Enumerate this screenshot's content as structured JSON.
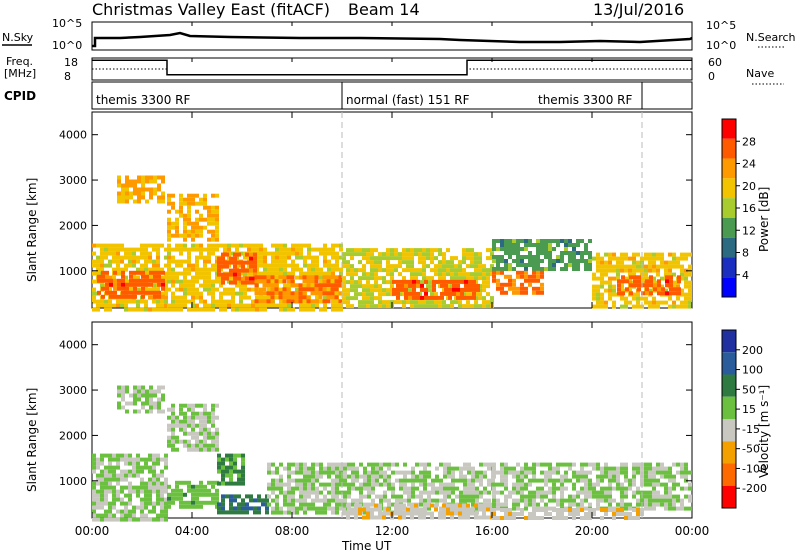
{
  "header": {
    "station": "Christmas Valley East (fitACF)",
    "beam": "Beam 14",
    "date": "13/Jul/2016"
  },
  "top_panels": {
    "nsky_label": "N.Sky",
    "nsky_ticks": [
      "10^5",
      "10^0"
    ],
    "nsearch_label": "N.Search",
    "nsearch_ticks": [
      "10^5",
      "10^0"
    ],
    "freq_label_1": "Freq.",
    "freq_label_2": "[MHz]",
    "freq_ticks": [
      "18",
      "8"
    ],
    "nave_label": "Nave",
    "nave_ticks": [
      "60",
      "0"
    ],
    "cpid_label": "CPID",
    "cpid_segments": [
      {
        "label": "themis 3300 RF",
        "start_hour": 0,
        "end_hour": 10
      },
      {
        "label": "normal (fast) 151 RF",
        "start_hour": 10,
        "end_hour": 22
      },
      {
        "label": "themis 3300 RF",
        "start_hour": 22,
        "end_hour": 24
      }
    ],
    "freq_series_mhz": [
      [
        0,
        17
      ],
      [
        3,
        17
      ],
      [
        3,
        10.4
      ],
      [
        15,
        10.4
      ],
      [
        15,
        17
      ],
      [
        24,
        17
      ]
    ],
    "nave_series": [
      [
        0,
        30
      ],
      [
        3,
        30
      ],
      [
        3,
        15
      ],
      [
        15,
        15
      ],
      [
        15,
        30
      ],
      [
        24,
        30
      ]
    ]
  },
  "x_axis": {
    "label": "Time UT",
    "ticks": [
      "00:00",
      "04:00",
      "08:00",
      "12:00",
      "16:00",
      "20:00",
      "00:00"
    ]
  },
  "power_panel": {
    "ylabel": "Slant Range [km]",
    "colorbar_label": "Power [dB]",
    "colorbar_ticks": [
      "28",
      "24",
      "20",
      "16",
      "12",
      "8",
      "4"
    ]
  },
  "velocity_panel": {
    "ylabel": "Slant Range [km]",
    "colorbar_label": "Velocity [m s⁻¹]",
    "colorbar_ticks": [
      "200",
      "100",
      "50",
      "15",
      "-15",
      "-50",
      "-100",
      "-200"
    ]
  },
  "colors": {
    "power_scale": [
      "#ff0000",
      "#ff5a00",
      "#ff9900",
      "#f2c400",
      "#a8cc2e",
      "#4a9a52",
      "#2b6a80",
      "#1a2ec0",
      "#0000ff"
    ],
    "velocity_scale": [
      "#2030a0",
      "#2a5c9c",
      "#2e7a40",
      "#6cc040",
      "#c8c8c0",
      "#f4a000",
      "#ff6a00",
      "#ff0000"
    ]
  },
  "chart_data": {
    "type": "heatmap",
    "x_range_hours": [
      0,
      24
    ],
    "y_range_km": [
      180,
      4500
    ],
    "y_ticks_km": [
      1000,
      2000,
      3000,
      4000
    ],
    "panels": [
      {
        "name": "Power [dB]",
        "scale": [
          0,
          32
        ],
        "regions": [
          {
            "t0": 0,
            "t1": 3,
            "r0": 180,
            "r1": 1600,
            "value": 20
          },
          {
            "t0": 0.2,
            "t1": 2.8,
            "r0": 400,
            "r1": 1000,
            "value": 28
          },
          {
            "t0": 1,
            "t1": 2.8,
            "r0": 2500,
            "r1": 3100,
            "value": 22
          },
          {
            "t0": 3,
            "t1": 5,
            "r0": 1700,
            "r1": 2700,
            "value": 22
          },
          {
            "t0": 3,
            "t1": 10,
            "r0": 180,
            "r1": 1600,
            "value": 20
          },
          {
            "t0": 5,
            "t1": 6.5,
            "r0": 700,
            "r1": 1400,
            "value": 28
          },
          {
            "t0": 6.5,
            "t1": 10,
            "r0": 300,
            "r1": 900,
            "value": 26
          },
          {
            "t0": 10,
            "t1": 16,
            "r0": 180,
            "r1": 1500,
            "value": 18
          },
          {
            "t0": 12,
            "t1": 15.5,
            "r0": 400,
            "r1": 800,
            "value": 28
          },
          {
            "t0": 16,
            "t1": 20,
            "r0": 1000,
            "r1": 1700,
            "value": 12
          },
          {
            "t0": 16,
            "t1": 18,
            "r0": 500,
            "r1": 1000,
            "value": 26
          },
          {
            "t0": 20,
            "t1": 24,
            "r0": 180,
            "r1": 1400,
            "value": 20
          },
          {
            "t0": 21,
            "t1": 23.5,
            "r0": 500,
            "r1": 900,
            "value": 28
          }
        ]
      },
      {
        "name": "Velocity [m s⁻¹]",
        "scale": [
          -200,
          200
        ],
        "regions": [
          {
            "t0": 0,
            "t1": 3,
            "r0": 180,
            "r1": 1600,
            "value": 0
          },
          {
            "t0": 1,
            "t1": 2.8,
            "r0": 2500,
            "r1": 3100,
            "value": 0
          },
          {
            "t0": 3,
            "t1": 5,
            "r0": 1700,
            "r1": 2700,
            "value": 0
          },
          {
            "t0": 3,
            "t1": 5,
            "r0": 400,
            "r1": 1000,
            "value": 30
          },
          {
            "t0": 5,
            "t1": 6,
            "r0": 900,
            "r1": 1600,
            "value": 60
          },
          {
            "t0": 5,
            "t1": 7,
            "r0": 300,
            "r1": 700,
            "value": 100
          },
          {
            "t0": 7,
            "t1": 16,
            "r0": 300,
            "r1": 1400,
            "value": 0
          },
          {
            "t0": 10,
            "t1": 16,
            "r0": 180,
            "r1": 500,
            "value": -40
          },
          {
            "t0": 16,
            "t1": 24,
            "r0": 400,
            "r1": 1400,
            "value": 0
          },
          {
            "t0": 16,
            "t1": 22,
            "r0": 180,
            "r1": 400,
            "value": -40
          }
        ]
      }
    ]
  }
}
